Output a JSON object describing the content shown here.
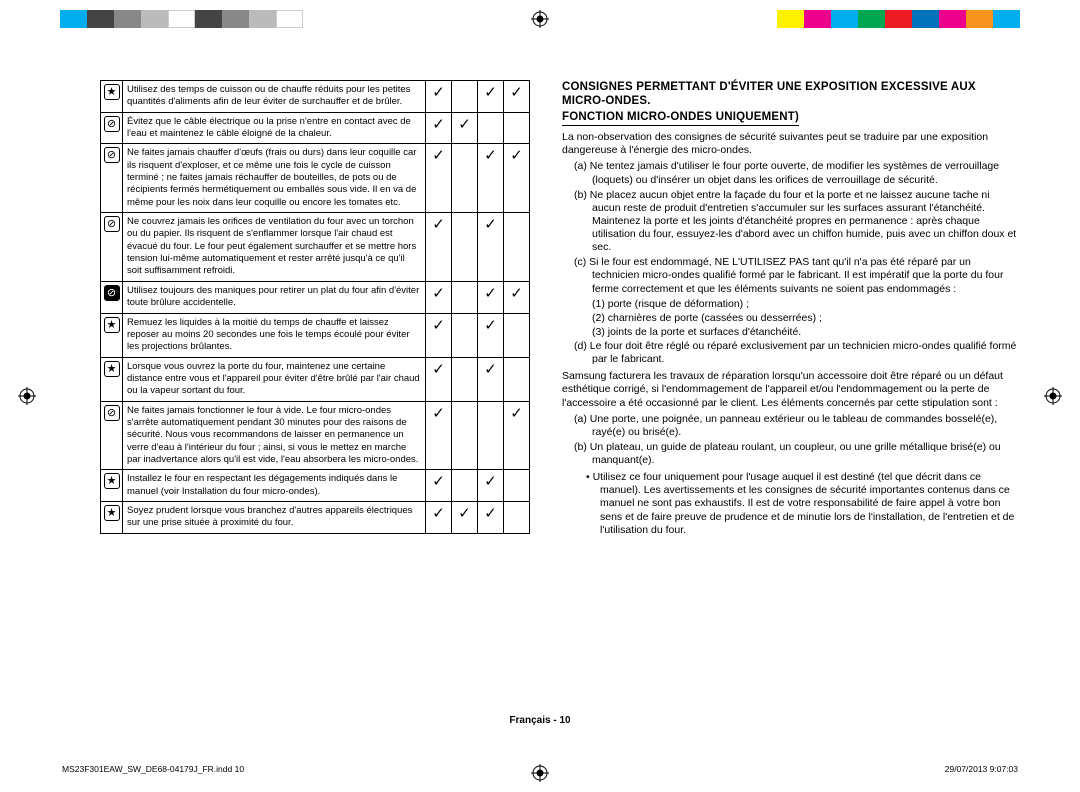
{
  "colorBars": {
    "left": [
      "#00adee",
      "#444444",
      "#888888",
      "#bbbbbb",
      "#ffffff",
      "#444444",
      "#888888",
      "#bbbbbb",
      "#ffffff"
    ],
    "right": [
      "#fff200",
      "#ec008c",
      "#00adee",
      "#00a650",
      "#ed1c24",
      "#0072bc",
      "#ec008c",
      "#f7941d",
      "#00adee"
    ]
  },
  "rows": [
    {
      "iconType": "star",
      "text": "Utilisez des temps de cuisson ou de chauffe réduits pour les petites quantités d'aliments afin de leur éviter de surchauffer et de brûler.",
      "checks": [
        true,
        false,
        true,
        true
      ]
    },
    {
      "iconType": "nodark",
      "text": "Évitez que le câble électrique ou la prise n'entre en contact avec de l'eau et maintenez le câble éloigné de la chaleur.",
      "checks": [
        true,
        true,
        false,
        false
      ]
    },
    {
      "iconType": "nodark",
      "text": "Ne faites jamais chauffer d'œufs (frais ou durs) dans leur coquille car ils risquent d'exploser, et ce même une fois le cycle de cuisson terminé ; ne faites jamais réchauffer de bouteilles, de pots ou de récipients fermés hermétiquement ou emballés sous vide. Il en va de même pour les noix dans leur coquille ou encore les tomates etc.",
      "checks": [
        true,
        false,
        true,
        true
      ]
    },
    {
      "iconType": "nodark",
      "text": "Ne couvrez jamais les orifices de ventilation du four avec un torchon ou du papier. Ils risquent de s'enflammer lorsque l'air chaud est évacué du four. Le four peut également surchauffer et se mettre hors tension lui-même automatiquement et rester arrêté jusqu'à ce qu'il soit suffisamment refroidi.",
      "checks": [
        true,
        false,
        true,
        false
      ]
    },
    {
      "iconType": "nofill",
      "text": "Utilisez toujours des maniques pour retirer un plat du four afin d'éviter toute brûlure accidentelle.",
      "checks": [
        true,
        false,
        true,
        true
      ]
    },
    {
      "iconType": "star",
      "text": "Remuez les liquides à la moitié du temps de chauffe et laissez reposer au moins 20 secondes une fois le temps écoulé pour éviter les projections brûlantes.",
      "checks": [
        true,
        false,
        true,
        false
      ]
    },
    {
      "iconType": "star",
      "text": "Lorsque vous ouvrez la porte du four, maintenez une certaine distance entre vous et l'appareil pour éviter d'être brûlé par l'air chaud ou la vapeur sortant du four.",
      "checks": [
        true,
        false,
        true,
        false
      ]
    },
    {
      "iconType": "nodark",
      "text": "Ne faites jamais fonctionner le four à vide. Le four micro-ondes s'arrête automatiquement pendant 30 minutes pour des raisons de sécurité. Nous vous recommandons de laisser en permanence un verre d'eau à l'intérieur du four ; ainsi, si vous le mettez en marche par inadvertance alors qu'il est vide, l'eau absorbera les micro-ondes.",
      "checks": [
        true,
        false,
        false,
        true
      ]
    },
    {
      "iconType": "star",
      "text": "Installez le four en respectant les dégagements indiqués dans le manuel (voir Installation du four micro-ondes).",
      "checks": [
        true,
        false,
        true,
        false
      ]
    },
    {
      "iconType": "star",
      "text": "Soyez prudent lorsque vous branchez d'autres appareils électriques sur une prise située à proximité du four.",
      "checks": [
        true,
        true,
        true,
        false
      ]
    }
  ],
  "rightTitle1": "CONSIGNES PERMETTANT D'ÉVITER UNE EXPOSITION EXCESSIVE AUX MICRO-ONDES.",
  "rightTitle2": "FONCTION MICRO-ONDES UNIQUEMENT)",
  "intro": "La non-observation des consignes de sécurité suivantes peut se traduire par une exposition dangereuse à l'énergie des micro-ondes.",
  "letA": "(a) Ne tentez jamais d'utiliser le four porte ouverte, de modifier les systèmes de verrouillage (loquets) ou d'insérer un objet dans les orifices de verrouillage de sécurité.",
  "letB": "(b) Ne placez aucun objet entre la façade du four et la porte et ne laissez aucune tache ni aucun reste de produit d'entretien s'accumuler sur les surfaces assurant l'étanchéité. Maintenez la porte et les joints d'étanchéité propres en permanence : après chaque utilisation du four, essuyez-les d'abord avec un chiffon humide, puis avec un chiffon doux et sec.",
  "letC": "(c) Si le four est endommagé, NE L'UTILISEZ PAS tant qu'il n'a pas été réparé par un technicien micro-ondes qualifié formé par le fabricant. Il est impératif que la porte du four ferme correctement et que les éléments suivants ne soient pas endommagés :",
  "num1": "(1) porte (risque de déformation) ;",
  "num2": "(2) charnières de porte (cassées ou desserrées) ;",
  "num3": "(3) joints de la porte et surfaces d'étanchéité.",
  "letD": "(d) Le four doit être réglé ou réparé exclusivement par un technicien micro-ondes qualifié formé par le fabricant.",
  "para2": "Samsung facturera les travaux de réparation lorsqu'un accessoire doit être réparé ou un défaut esthétique corrigé, si l'endommagement de l'appareil et/ou l'endommagement ou la perte de l'accessoire a été occasionné par le client. Les éléments concernés par cette stipulation sont :",
  "let2A": "(a) Une porte, une poignée, un panneau extérieur ou le tableau de commandes bosselé(e), rayé(e) ou brisé(e).",
  "let2B": "(b) Un plateau, un guide de plateau roulant, un coupleur, ou une grille métallique brisé(e) ou manquant(e).",
  "bullet1": "•   Utilisez ce four uniquement pour l'usage auquel il est destiné (tel que décrit dans ce manuel). Les avertissements et les consignes de sécurité importantes contenus dans ce manuel ne sont pas exhaustifs. Il est de votre responsabilité de faire appel à votre bon sens et de faire preuve de prudence et de minutie lors de l'installation, de l'entretien et de l'utilisation du four.",
  "footerCenter": "Français - 10",
  "footerLeft": "MS23F301EAW_SW_DE68-04179J_FR.indd   10",
  "footerRight": "29/07/2013   9:07:03",
  "checkMark": "✓"
}
